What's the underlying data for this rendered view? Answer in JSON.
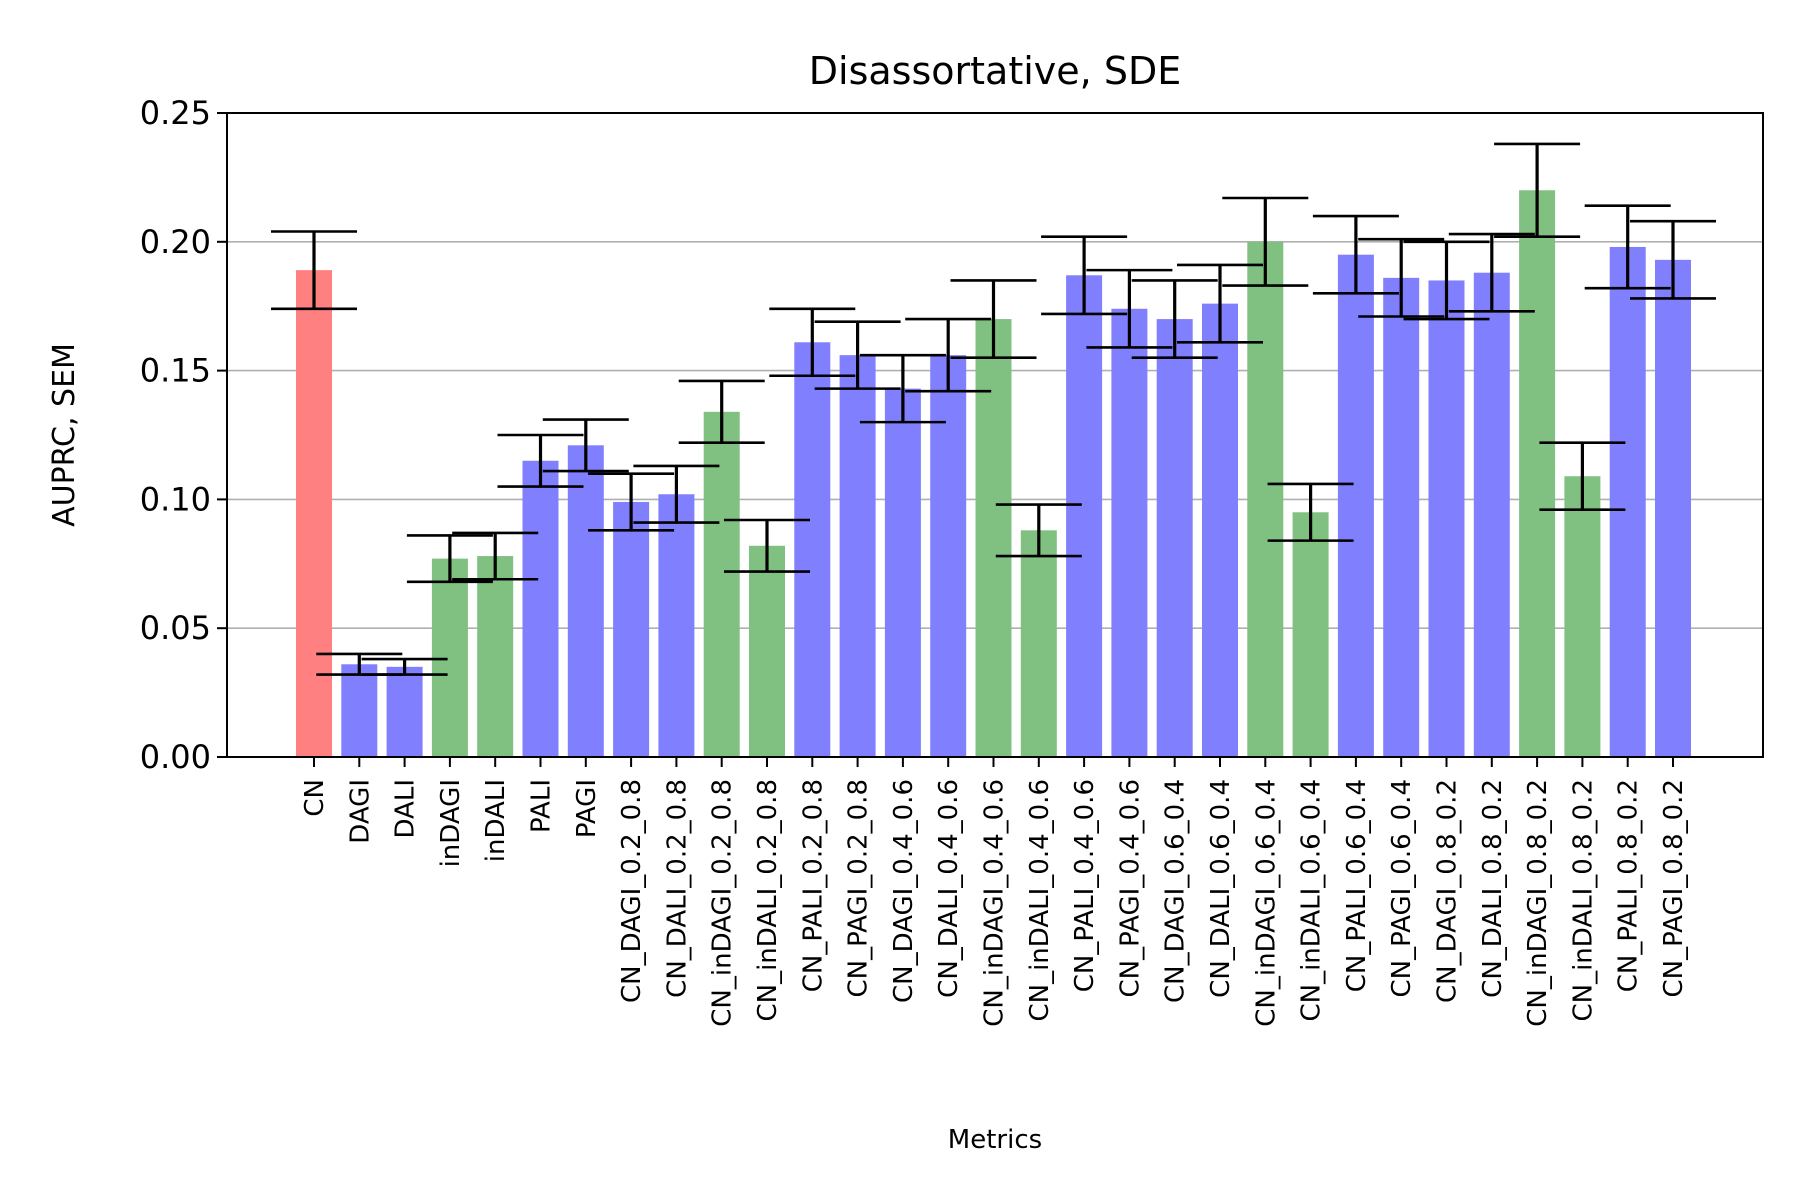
{
  "chart_data": {
    "type": "bar",
    "title": "Disassortative, SDE",
    "xlabel": "Metrics",
    "ylabel": "AUPRC, SEM",
    "ylim": [
      0,
      0.25
    ],
    "yticks": [
      "0.00",
      "0.05",
      "0.10",
      "0.15",
      "0.20",
      "0.25"
    ],
    "grid": "horizontal",
    "colors": {
      "red": "#ff8080",
      "blue": "#8080ff",
      "green": "#80c080",
      "error": "#000000"
    },
    "categories": [
      "CN",
      "DAGI",
      "DALI",
      "inDAGI",
      "inDALI",
      "PALI",
      "PAGI",
      "CN_DAGI_0.2_0.8",
      "CN_DALI_0.2_0.8",
      "CN_inDAGI_0.2_0.8",
      "CN_inDALI_0.2_0.8",
      "CN_PALI_0.2_0.8",
      "CN_PAGI_0.2_0.8",
      "CN_DAGI_0.4_0.6",
      "CN_DALI_0.4_0.6",
      "CN_inDAGI_0.4_0.6",
      "CN_inDALI_0.4_0.6",
      "CN_PALI_0.4_0.6",
      "CN_PAGI_0.4_0.6",
      "CN_DAGI_0.6_0.4",
      "CN_DALI_0.6_0.4",
      "CN_inDAGI_0.6_0.4",
      "CN_inDALI_0.6_0.4",
      "CN_PALI_0.6_0.4",
      "CN_PAGI_0.6_0.4",
      "CN_DAGI_0.8_0.2",
      "CN_DALI_0.8_0.2",
      "CN_inDAGI_0.8_0.2",
      "CN_inDALI_0.8_0.2",
      "CN_PALI_0.8_0.2",
      "CN_PAGI_0.8_0.2"
    ],
    "values": [
      0.189,
      0.036,
      0.035,
      0.077,
      0.078,
      0.115,
      0.121,
      0.099,
      0.102,
      0.134,
      0.082,
      0.161,
      0.156,
      0.143,
      0.156,
      0.17,
      0.088,
      0.187,
      0.174,
      0.17,
      0.176,
      0.2,
      0.095,
      0.195,
      0.186,
      0.185,
      0.188,
      0.22,
      0.109,
      0.198,
      0.193
    ],
    "errors": [
      0.015,
      0.004,
      0.003,
      0.009,
      0.009,
      0.01,
      0.01,
      0.011,
      0.011,
      0.012,
      0.01,
      0.013,
      0.013,
      0.013,
      0.014,
      0.015,
      0.01,
      0.015,
      0.015,
      0.015,
      0.015,
      0.017,
      0.011,
      0.015,
      0.015,
      0.015,
      0.015,
      0.018,
      0.013,
      0.016,
      0.015
    ],
    "bar_colors": [
      "red",
      "blue",
      "blue",
      "green",
      "green",
      "blue",
      "blue",
      "blue",
      "blue",
      "green",
      "green",
      "blue",
      "blue",
      "blue",
      "blue",
      "green",
      "green",
      "blue",
      "blue",
      "blue",
      "blue",
      "green",
      "green",
      "blue",
      "blue",
      "blue",
      "blue",
      "green",
      "green",
      "blue",
      "blue"
    ]
  }
}
